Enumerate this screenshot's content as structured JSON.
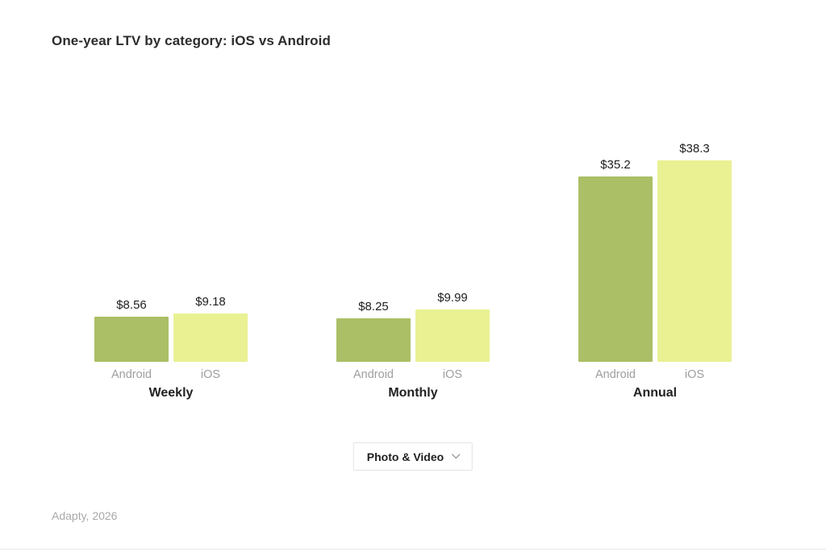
{
  "title": "One-year LTV by category: iOS vs Android",
  "chart_data": {
    "type": "bar",
    "title": "One-year LTV by category: iOS vs Android",
    "categories": [
      "Weekly",
      "Monthly",
      "Annual"
    ],
    "series": [
      {
        "name": "Android",
        "color": "#abbf66",
        "values": [
          8.56,
          8.25,
          35.2
        ]
      },
      {
        "name": "iOS",
        "color": "#e9f193",
        "values": [
          9.18,
          9.99,
          38.3
        ]
      }
    ],
    "value_labels": [
      [
        "$8.56",
        "$9.18"
      ],
      [
        "$8.25",
        "$9.99"
      ],
      [
        "$35.2",
        "$38.3"
      ]
    ],
    "ylim": [
      0,
      40
    ],
    "grid": false,
    "axes_shown": false,
    "legend_position": "labels-under-bars",
    "value_label_color": "#1f1f1f",
    "series_label_color": "#9e9e9e"
  },
  "filter": {
    "selected": "Photo & Video"
  },
  "footer": {
    "source": "Adapty, 2026"
  }
}
